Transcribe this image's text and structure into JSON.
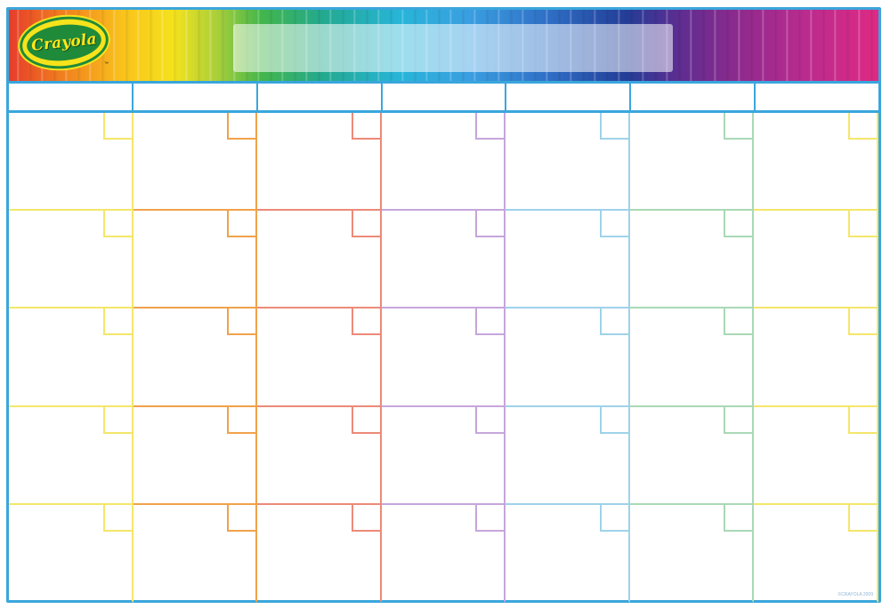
{
  "banner": {
    "logo_text": "Crayola",
    "logo_tm": "™",
    "title": ""
  },
  "days": [
    "",
    "",
    "",
    "",
    "",
    "",
    ""
  ],
  "column_colors": [
    "#f4e66a",
    "#f0a24b",
    "#ec8a78",
    "#c6a6dc",
    "#9fd2ea",
    "#a9d9b6",
    "#f4e66a"
  ],
  "frame_color": "#3aa6dc",
  "weeks": 5,
  "footer": {
    "copyright": "©CRAYOLA 2009"
  }
}
